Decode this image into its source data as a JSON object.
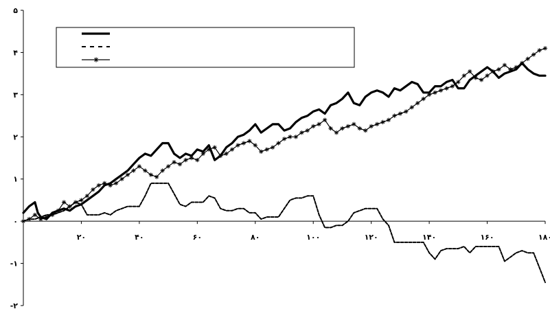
{
  "chart_data": {
    "type": "line",
    "title": "",
    "xlabel": "",
    "ylabel": "",
    "xlim": [
      0,
      180
    ],
    "ylim": [
      -2,
      5
    ],
    "x_ticks": [
      {
        "value": 20,
        "label": "۲۰"
      },
      {
        "value": 40,
        "label": "۴۰"
      },
      {
        "value": 60,
        "label": "۶۰"
      },
      {
        "value": 80,
        "label": "۸۰"
      },
      {
        "value": 100,
        "label": "۱۰۰"
      },
      {
        "value": 120,
        "label": "۱۲۰"
      },
      {
        "value": 140,
        "label": "۱۴۰"
      },
      {
        "value": 160,
        "label": "۱۶۰"
      },
      {
        "value": 180,
        "label": "۱۸۰"
      }
    ],
    "y_ticks": [
      {
        "value": 5,
        "label": "۵"
      },
      {
        "value": 4,
        "label": "۴"
      },
      {
        "value": 3,
        "label": "۳"
      },
      {
        "value": 2,
        "label": "۲"
      },
      {
        "value": 1,
        "label": "۱"
      },
      {
        "value": 0,
        "label": "۰"
      },
      {
        "value": -1,
        "label": "-۱"
      },
      {
        "value": -2,
        "label": "-۲"
      }
    ],
    "grid": false,
    "legend": {
      "placement": "top-left",
      "entries": [
        "",
        "",
        ""
      ]
    },
    "series": [
      {
        "style": "solid-thick",
        "color": "#000000",
        "x": [
          0,
          2,
          4,
          5,
          6,
          8,
          10,
          12,
          14,
          16,
          18,
          20,
          22,
          24,
          26,
          28,
          30,
          32,
          34,
          36,
          38,
          40,
          42,
          44,
          46,
          48,
          50,
          52,
          54,
          56,
          58,
          60,
          62,
          64,
          66,
          68,
          70,
          72,
          74,
          76,
          78,
          80,
          82,
          84,
          86,
          88,
          90,
          92,
          94,
          96,
          98,
          100,
          102,
          104,
          106,
          108,
          110,
          112,
          114,
          116,
          118,
          120,
          122,
          124,
          126,
          128,
          130,
          132,
          134,
          136,
          138,
          140,
          142,
          144,
          146,
          148,
          150,
          152,
          154,
          156,
          158,
          160,
          162,
          164,
          166,
          168,
          170,
          172,
          174,
          176,
          178,
          180
        ],
        "y": [
          0.2,
          0.35,
          0.45,
          0.2,
          0.1,
          0.05,
          0.2,
          0.25,
          0.3,
          0.25,
          0.35,
          0.4,
          0.5,
          0.6,
          0.7,
          0.85,
          0.9,
          1.0,
          1.1,
          1.2,
          1.35,
          1.5,
          1.6,
          1.55,
          1.7,
          1.85,
          1.85,
          1.6,
          1.5,
          1.6,
          1.55,
          1.7,
          1.65,
          1.8,
          1.45,
          1.55,
          1.75,
          1.85,
          2.0,
          2.05,
          2.15,
          2.3,
          2.1,
          2.2,
          2.3,
          2.3,
          2.15,
          2.2,
          2.35,
          2.45,
          2.5,
          2.6,
          2.65,
          2.55,
          2.75,
          2.8,
          2.9,
          3.05,
          2.8,
          2.75,
          2.95,
          3.05,
          3.1,
          3.05,
          2.95,
          3.15,
          3.1,
          3.2,
          3.3,
          3.25,
          3.05,
          3.05,
          3.2,
          3.2,
          3.3,
          3.35,
          3.15,
          3.15,
          3.35,
          3.45,
          3.55,
          3.65,
          3.55,
          3.4,
          3.5,
          3.55,
          3.6,
          3.75,
          3.6,
          3.5,
          3.45,
          3.45
        ]
      },
      {
        "style": "dashed",
        "color": "#000000",
        "x": [
          0,
          2,
          4,
          6,
          8,
          10,
          12,
          14,
          16,
          18,
          20,
          22,
          24,
          26,
          28,
          30,
          32,
          34,
          36,
          38,
          40,
          42,
          44,
          46,
          48,
          50,
          52,
          54,
          56,
          58,
          60,
          62,
          64,
          66,
          68,
          70,
          72,
          74,
          76,
          78,
          80,
          82,
          84,
          86,
          88,
          90,
          92,
          94,
          96,
          98,
          100,
          102,
          104,
          106,
          108,
          110,
          112,
          114,
          116,
          118,
          120,
          122,
          124,
          126,
          128,
          130,
          132,
          134,
          136,
          138,
          140,
          142,
          144,
          146,
          148,
          150,
          152,
          154,
          156,
          158,
          160,
          162,
          164,
          166,
          168,
          170,
          172,
          174,
          176,
          178,
          180
        ],
        "y": [
          0.0,
          0.05,
          0.05,
          0.1,
          0.15,
          0.15,
          0.2,
          0.25,
          0.35,
          0.45,
          0.4,
          0.15,
          0.15,
          0.15,
          0.2,
          0.15,
          0.25,
          0.3,
          0.35,
          0.35,
          0.35,
          0.6,
          0.9,
          0.9,
          0.9,
          0.9,
          0.65,
          0.4,
          0.35,
          0.45,
          0.45,
          0.45,
          0.6,
          0.55,
          0.3,
          0.25,
          0.25,
          0.3,
          0.3,
          0.2,
          0.2,
          0.05,
          0.1,
          0.1,
          0.1,
          0.3,
          0.5,
          0.55,
          0.55,
          0.6,
          0.6,
          0.15,
          -0.15,
          -0.15,
          -0.1,
          -0.1,
          0.0,
          0.2,
          0.25,
          0.3,
          0.3,
          0.3,
          0.05,
          -0.1,
          -0.5,
          -0.5,
          -0.5,
          -0.5,
          -0.5,
          -0.5,
          -0.75,
          -0.9,
          -0.7,
          -0.65,
          -0.65,
          -0.65,
          -0.6,
          -0.75,
          -0.6,
          -0.6,
          -0.6,
          -0.6,
          -0.6,
          -0.95,
          -0.85,
          -0.75,
          -0.7,
          -0.75,
          -0.75,
          -1.1,
          -1.45
        ]
      },
      {
        "style": "solid-thin-star",
        "color": "#000000",
        "x": [
          0,
          2,
          4,
          6,
          8,
          10,
          12,
          14,
          16,
          18,
          20,
          22,
          24,
          26,
          28,
          30,
          32,
          34,
          36,
          38,
          40,
          42,
          44,
          46,
          48,
          50,
          52,
          54,
          56,
          58,
          60,
          62,
          64,
          66,
          68,
          70,
          72,
          74,
          76,
          78,
          80,
          82,
          84,
          86,
          88,
          90,
          92,
          94,
          96,
          98,
          100,
          102,
          104,
          106,
          108,
          110,
          112,
          114,
          116,
          118,
          120,
          122,
          124,
          126,
          128,
          130,
          132,
          134,
          136,
          138,
          140,
          142,
          144,
          146,
          148,
          150,
          152,
          154,
          156,
          158,
          160,
          162,
          164,
          166,
          168,
          170,
          172,
          174,
          176,
          178,
          180
        ],
        "y": [
          0.0,
          0.05,
          0.15,
          0.05,
          0.1,
          0.15,
          0.25,
          0.45,
          0.35,
          0.45,
          0.5,
          0.6,
          0.75,
          0.85,
          0.9,
          0.85,
          0.9,
          1.0,
          1.1,
          1.2,
          1.3,
          1.2,
          1.1,
          1.05,
          1.2,
          1.3,
          1.4,
          1.35,
          1.45,
          1.5,
          1.45,
          1.6,
          1.7,
          1.75,
          1.55,
          1.6,
          1.7,
          1.8,
          1.85,
          1.9,
          1.8,
          1.65,
          1.7,
          1.75,
          1.85,
          1.95,
          2.0,
          2.0,
          2.1,
          2.15,
          2.25,
          2.3,
          2.4,
          2.2,
          2.1,
          2.2,
          2.25,
          2.3,
          2.2,
          2.15,
          2.25,
          2.3,
          2.35,
          2.4,
          2.5,
          2.55,
          2.6,
          2.7,
          2.8,
          2.9,
          3.0,
          3.05,
          3.1,
          3.15,
          3.2,
          3.3,
          3.45,
          3.55,
          3.4,
          3.35,
          3.45,
          3.55,
          3.6,
          3.7,
          3.6,
          3.65,
          3.75,
          3.85,
          3.95,
          4.05,
          4.1
        ]
      }
    ]
  }
}
